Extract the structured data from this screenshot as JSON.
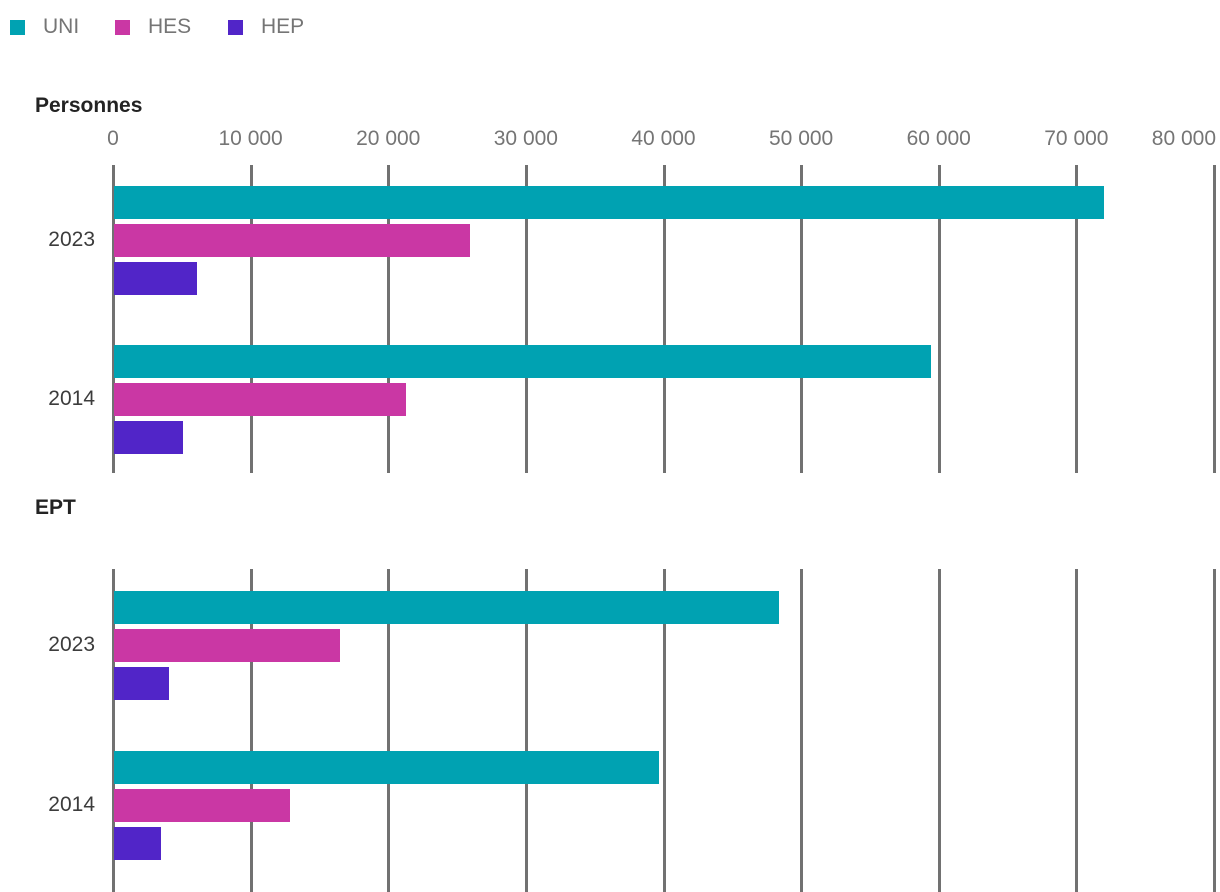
{
  "legend": {
    "items": [
      {
        "label": "UNI",
        "color": "#00A2B2"
      },
      {
        "label": "HES",
        "color": "#CA37A4"
      },
      {
        "label": "HEP",
        "color": "#5125C8"
      }
    ]
  },
  "axis": {
    "min": 0,
    "max": 80000,
    "tick_labels": [
      "0",
      "10 000",
      "20 000",
      "30 000",
      "40 000",
      "50 000",
      "60 000",
      "70 000",
      "80 000"
    ]
  },
  "colors": {
    "grid": "#717171",
    "tick_text": "#757575",
    "category_text": "#3c3c3c",
    "title_text": "#232323",
    "background": "#ffffff"
  },
  "chart_data": [
    {
      "type": "bar",
      "orientation": "horizontal",
      "title": "Personnes",
      "categories": [
        "2023",
        "2014"
      ],
      "series": [
        {
          "name": "UNI",
          "color": "#00A2B2",
          "values": [
            71900,
            59400
          ]
        },
        {
          "name": "HES",
          "color": "#CA37A4",
          "values": [
            25900,
            21200
          ]
        },
        {
          "name": "HEP",
          "color": "#5125C8",
          "values": [
            6000,
            5000
          ]
        }
      ],
      "xlim": [
        0,
        80000
      ],
      "grid": "vertical",
      "legend_position": "top",
      "tick_labels": [
        "0",
        "10 000",
        "20 000",
        "30 000",
        "40 000",
        "50 000",
        "60 000",
        "70 000",
        "80 000"
      ]
    },
    {
      "type": "bar",
      "orientation": "horizontal",
      "title": "EPT",
      "categories": [
        "2023",
        "2014"
      ],
      "series": [
        {
          "name": "UNI",
          "color": "#00A2B2",
          "values": [
            48300,
            39600
          ]
        },
        {
          "name": "HES",
          "color": "#CA37A4",
          "values": [
            16400,
            12800
          ]
        },
        {
          "name": "HEP",
          "color": "#5125C8",
          "values": [
            4000,
            3400
          ]
        }
      ],
      "xlim": [
        0,
        80000
      ],
      "grid": "vertical",
      "tick_labels": []
    }
  ]
}
